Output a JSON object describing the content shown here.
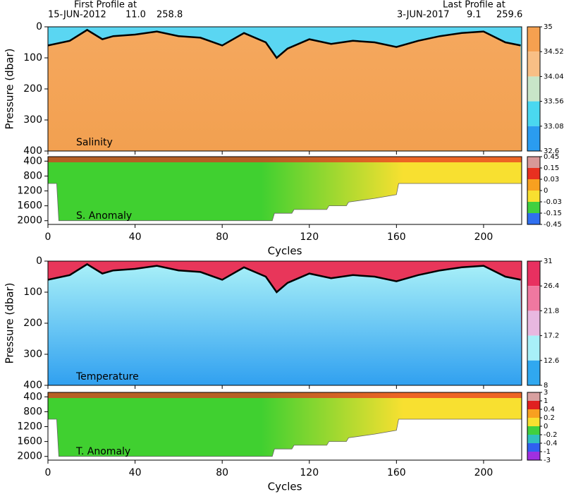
{
  "header": {
    "first_label": "First Profile at",
    "first_date": "15-JUN-2012",
    "first_lat": "11.0",
    "first_lon": "258.8",
    "last_label": "Last Profile at",
    "last_date": "3-JUN-2017",
    "last_lat": "9.1",
    "last_lon": "259.6"
  },
  "chart_data": [
    {
      "type": "section",
      "title": "Salinity",
      "ylabel": "Pressure (dbar)",
      "xlim": [
        0,
        217.5
      ],
      "xticks": [
        0,
        40,
        80,
        120,
        160,
        200
      ],
      "ylim": [
        0,
        400
      ],
      "yticks": [
        0,
        100,
        200,
        300,
        400
      ],
      "x": [
        0,
        10,
        18,
        25,
        30,
        40,
        50,
        60,
        70,
        80,
        90,
        100,
        105,
        110,
        120,
        130,
        140,
        150,
        160,
        170,
        180,
        190,
        200,
        210,
        217
      ],
      "values": [
        60,
        45,
        10,
        40,
        30,
        25,
        15,
        30,
        35,
        60,
        20,
        50,
        100,
        70,
        40,
        55,
        45,
        50,
        65,
        45,
        30,
        20,
        15,
        50,
        60
      ],
      "field_colors": [
        "#5ad6f2",
        "#f5a85e",
        "#f2a050"
      ],
      "colorbar": {
        "ticks": [
          35,
          34.52,
          34.04,
          33.56,
          33.08,
          32.6
        ],
        "colors": [
          "#f5a050",
          "#f8bf85",
          "#c8e6c8",
          "#4ad8f0",
          "#2a9cf0"
        ]
      }
    },
    {
      "type": "anomaly",
      "title": "S. Anomaly",
      "xlabel": "Cycles",
      "xlim": [
        0,
        217.5
      ],
      "xticks": [
        0,
        40,
        80,
        120,
        160,
        200
      ],
      "ylim": [
        280,
        2100
      ],
      "yticks": [
        400,
        800,
        1200,
        1600,
        2000
      ],
      "x": [
        0,
        4,
        5,
        103,
        104,
        112,
        113,
        128,
        129,
        137,
        138,
        150,
        160,
        161,
        217.5
      ],
      "values": [
        1000,
        1000,
        2000,
        2000,
        1800,
        1800,
        1700,
        1700,
        1600,
        1600,
        1500,
        1400,
        1300,
        1000,
        1000
      ],
      "field_colors": [
        "#40d030",
        "#f8e030",
        "#e83020"
      ],
      "colorbar": {
        "ticks": [
          0.45,
          0.15,
          0.03,
          0,
          -0.03,
          -0.15,
          -0.45
        ],
        "colors": [
          "#d89898",
          "#e83020",
          "#f8a020",
          "#f8e030",
          "#40d040",
          "#3070f0"
        ]
      }
    },
    {
      "type": "section",
      "title": "Temperature",
      "ylabel": "Pressure (dbar)",
      "xlim": [
        0,
        217.5
      ],
      "xticks": [
        0,
        40,
        80,
        120,
        160,
        200
      ],
      "ylim": [
        0,
        400
      ],
      "yticks": [
        0,
        100,
        200,
        300,
        400
      ],
      "x": [
        0,
        10,
        18,
        25,
        30,
        40,
        50,
        60,
        70,
        80,
        90,
        100,
        105,
        110,
        120,
        130,
        140,
        150,
        160,
        170,
        180,
        190,
        200,
        210,
        217
      ],
      "values": [
        60,
        45,
        10,
        40,
        30,
        25,
        15,
        30,
        35,
        60,
        20,
        50,
        100,
        70,
        40,
        55,
        45,
        50,
        65,
        45,
        30,
        20,
        15,
        50,
        60
      ],
      "field_colors": [
        "#e8365a",
        "#a8f0f8",
        "#30a0f0"
      ],
      "colorbar": {
        "ticks": [
          31,
          26.4,
          21.8,
          17.2,
          12.6,
          8
        ],
        "colors": [
          "#e83060",
          "#f078a0",
          "#e8b8e0",
          "#a8f0f8",
          "#30a8f0"
        ]
      }
    },
    {
      "type": "anomaly",
      "title": "T. Anomaly",
      "xlabel": "Cycles",
      "xlim": [
        0,
        217.5
      ],
      "xticks": [
        0,
        40,
        80,
        120,
        160,
        200
      ],
      "ylim": [
        280,
        2100
      ],
      "yticks": [
        400,
        800,
        1200,
        1600,
        2000
      ],
      "x": [
        0,
        4,
        5,
        103,
        104,
        112,
        113,
        128,
        129,
        137,
        138,
        150,
        160,
        161,
        217.5
      ],
      "values": [
        1000,
        1000,
        2000,
        2000,
        1800,
        1800,
        1700,
        1700,
        1600,
        1600,
        1500,
        1400,
        1300,
        1000,
        1000
      ],
      "field_colors": [
        "#40d030",
        "#f8e030",
        "#e83020"
      ],
      "colorbar": {
        "ticks": [
          3,
          1,
          0.4,
          0.2,
          0,
          -0.2,
          -0.4,
          -1,
          -3
        ],
        "colors": [
          "#d8a0a0",
          "#e02020",
          "#f8a020",
          "#f8e030",
          "#40d040",
          "#30c0c0",
          "#3060f0",
          "#a030e0"
        ]
      }
    }
  ]
}
